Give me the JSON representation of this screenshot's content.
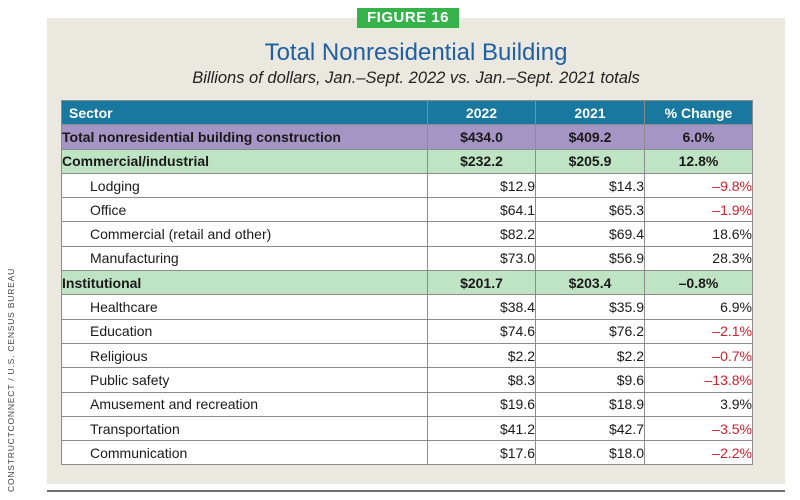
{
  "figure_label": "FIGURE 16",
  "title": "Total Nonresidential Building",
  "subtitle": "Billions of dollars, Jan.–Sept. 2022 vs. Jan.–Sept. 2021 totals",
  "credit": "CONSTRUCTCONNECT / U.S. CENSUS BUREAU",
  "colors": {
    "header": "#1878a0",
    "total_row": "#a595c5",
    "group_row": "#bfe4c4",
    "negative": "#d11f2b",
    "badge": "#35b34a",
    "title": "#1f5fa3"
  },
  "table": {
    "headers": [
      "Sector",
      "2022",
      "2021",
      "% Change"
    ],
    "rows": [
      {
        "sector": "Total nonresidential building construction",
        "y2022": "$434.0",
        "y2021": "$409.2",
        "change": "6.0%",
        "kind": "total"
      },
      {
        "sector": "Commercial/industrial",
        "y2022": "$232.2",
        "y2021": "$205.9",
        "change": "12.8%",
        "kind": "group"
      },
      {
        "sector": "Lodging",
        "y2022": "$12.9",
        "y2021": "$14.3",
        "change": "–9.8%",
        "kind": "sub"
      },
      {
        "sector": "Office",
        "y2022": "$64.1",
        "y2021": "$65.3",
        "change": "–1.9%",
        "kind": "sub"
      },
      {
        "sector": "Commercial (retail and other)",
        "y2022": "$82.2",
        "y2021": "$69.4",
        "change": "18.6%",
        "kind": "sub"
      },
      {
        "sector": "Manufacturing",
        "y2022": "$73.0",
        "y2021": "$56.9",
        "change": "28.3%",
        "kind": "sub"
      },
      {
        "sector": "Institutional",
        "y2022": "$201.7",
        "y2021": "$203.4",
        "change": "–0.8%",
        "kind": "group"
      },
      {
        "sector": "Healthcare",
        "y2022": "$38.4",
        "y2021": "$35.9",
        "change": "6.9%",
        "kind": "sub"
      },
      {
        "sector": "Education",
        "y2022": "$74.6",
        "y2021": "$76.2",
        "change": "–2.1%",
        "kind": "sub"
      },
      {
        "sector": "Religious",
        "y2022": "$2.2",
        "y2021": "$2.2",
        "change": "–0.7%",
        "kind": "sub"
      },
      {
        "sector": "Public safety",
        "y2022": "$8.3",
        "y2021": "$9.6",
        "change": "–13.8%",
        "kind": "sub"
      },
      {
        "sector": "Amusement and recreation",
        "y2022": "$19.6",
        "y2021": "$18.9",
        "change": "3.9%",
        "kind": "sub"
      },
      {
        "sector": "Transportation",
        "y2022": "$41.2",
        "y2021": "$42.7",
        "change": "–3.5%",
        "kind": "sub"
      },
      {
        "sector": "Communication",
        "y2022": "$17.6",
        "y2021": "$18.0",
        "change": "–2.2%",
        "kind": "sub"
      }
    ]
  }
}
